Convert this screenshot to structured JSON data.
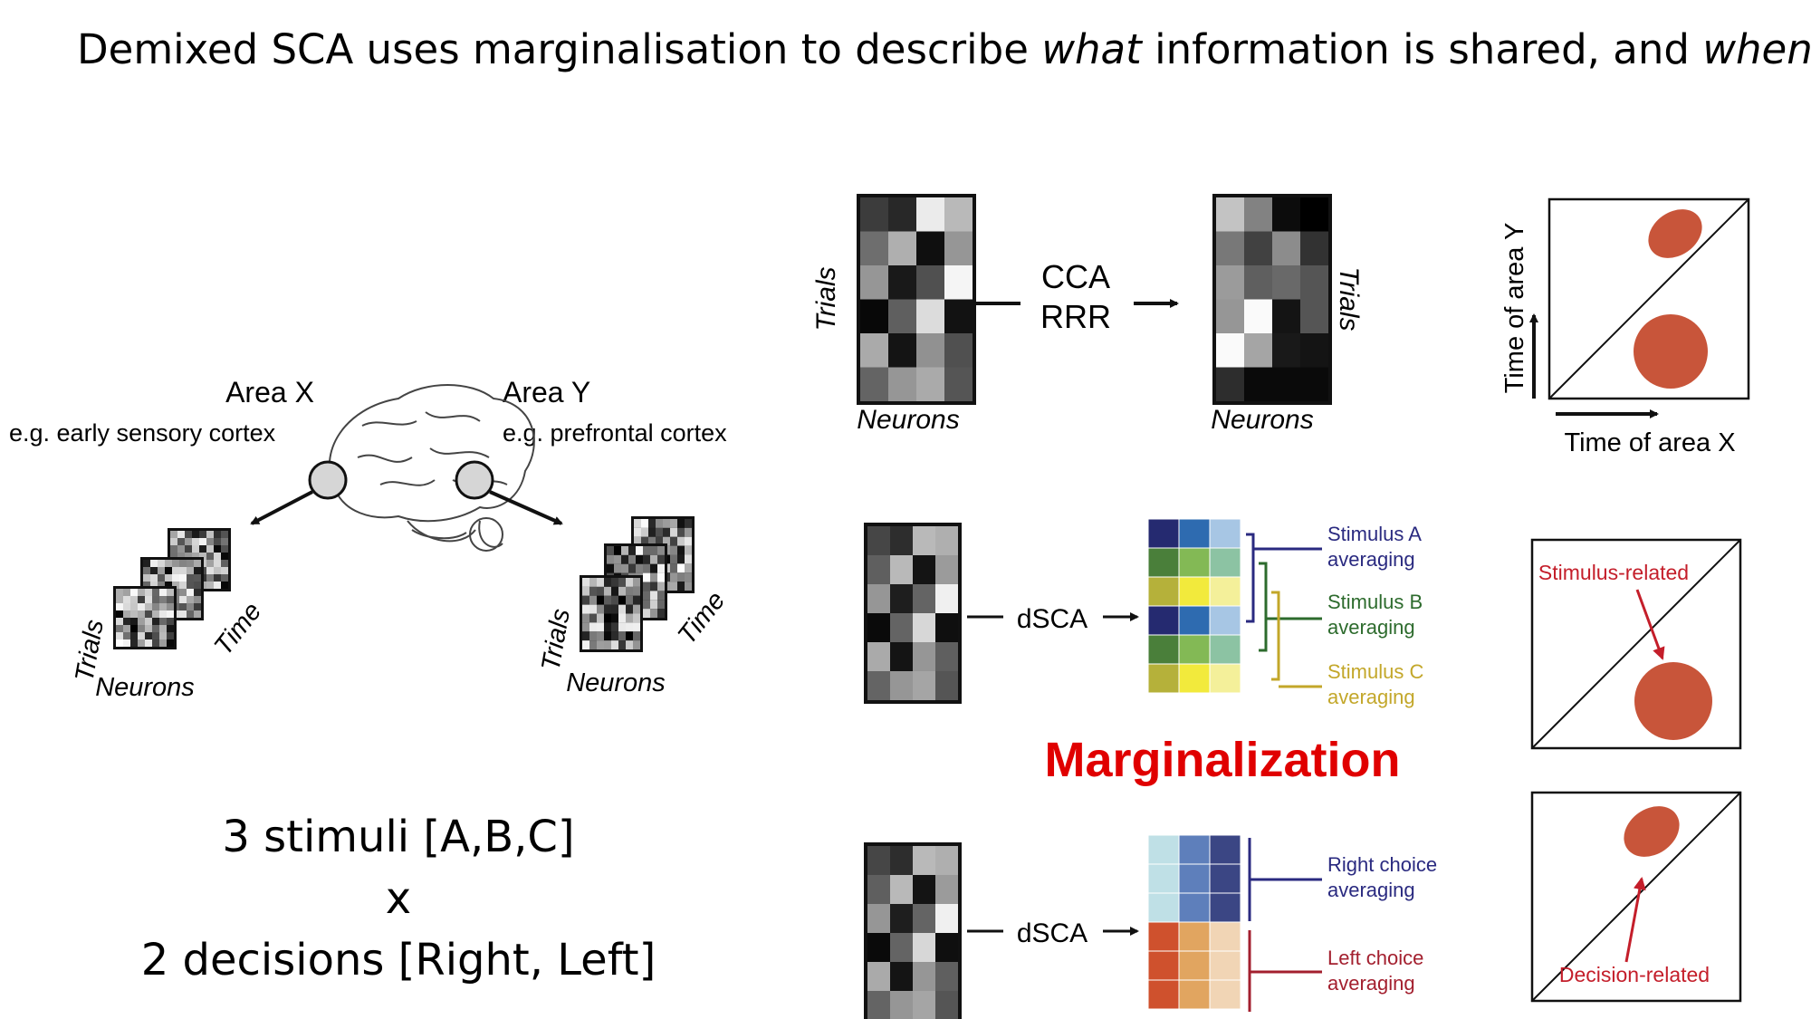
{
  "title": {
    "part1": "Demixed SCA uses marginalisation to describe ",
    "what": "what",
    "part2": " information is shared, and ",
    "when": "when"
  },
  "areas": {
    "x_name": "Area X",
    "x_example": "e.g. early sensory cortex",
    "y_name": "Area Y",
    "y_example": "e.g. prefrontal cortex"
  },
  "axis_labels": {
    "trials": "Trials",
    "neurons": "Neurons",
    "time": "Time"
  },
  "methods": {
    "cca": "CCA",
    "rrr": "RRR",
    "dsca": "dSCA"
  },
  "cross_time_plot": {
    "y_label": "Time of area Y",
    "x_label": "Time of area X"
  },
  "stimulus_groups": [
    {
      "name": "Stimulus A",
      "sub": "averaging",
      "color": "#2a2a80"
    },
    {
      "name": "Stimulus B",
      "sub": "averaging",
      "color": "#2d6b2d"
    },
    {
      "name": "Stimulus C",
      "sub": "averaging",
      "color": "#c3a72a"
    }
  ],
  "choice_groups": [
    {
      "name": "Right choice",
      "sub": "averaging",
      "color": "#2a2a80"
    },
    {
      "name": "Left choice",
      "sub": "averaging",
      "color": "#a31f2e"
    }
  ],
  "annotations": {
    "stimulus_related": "Stimulus-related",
    "decision_related": "Decision-related"
  },
  "marginalization": "Marginalization",
  "conditions": {
    "line1": "3 stimuli [A,B,C]",
    "line2": "x",
    "line3": "2 decisions [Right, Left]"
  },
  "colors": {
    "blob": "#c8553a",
    "annotation_red": "#c41e2a",
    "marginalization_red": "#e00000"
  }
}
